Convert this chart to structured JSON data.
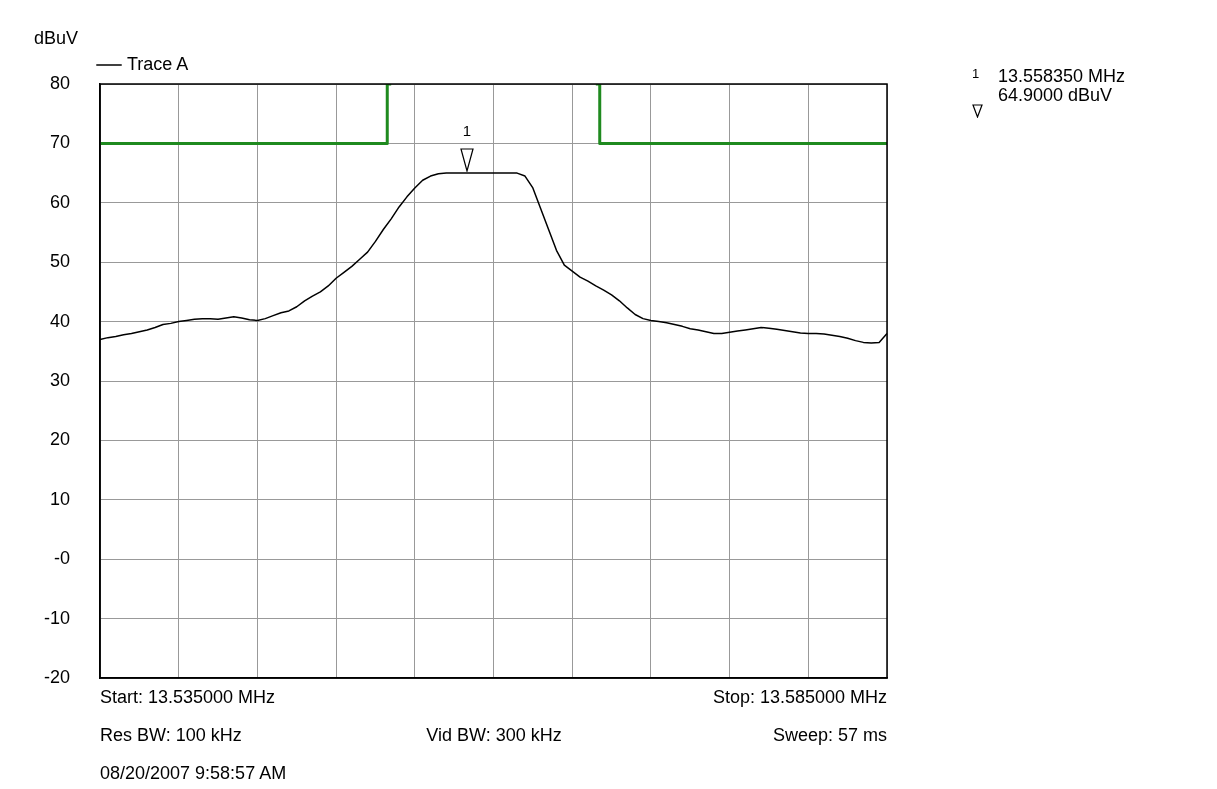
{
  "chart_data": {
    "type": "line",
    "ylabel": "dBuV",
    "categories": [
      null,
      null,
      null,
      null,
      null,
      null,
      null,
      null,
      null,
      null,
      null,
      null,
      null,
      null,
      null,
      null,
      null,
      null,
      null,
      null,
      null,
      null,
      null,
      null,
      null,
      null,
      null,
      null,
      null,
      null,
      null,
      null,
      null,
      null,
      null,
      null,
      null,
      null,
      null,
      null,
      null,
      null,
      null,
      null,
      null,
      null,
      null,
      null,
      null,
      null,
      null,
      null,
      null,
      null,
      null,
      null,
      null,
      null,
      null,
      null,
      null,
      null,
      null,
      null,
      null,
      null,
      null,
      null,
      null,
      null,
      null,
      null,
      null,
      null,
      null,
      null,
      null,
      null,
      null,
      null,
      null,
      null,
      null,
      null,
      null,
      null,
      null,
      null,
      null,
      null,
      null,
      null,
      null,
      null,
      null,
      null,
      null,
      null,
      null,
      null,
      null
    ],
    "ylim": [
      -20,
      80
    ],
    "yticks": [
      -20,
      -10,
      {
        "value": 0,
        "label": "-0"
      },
      10,
      20,
      30,
      40,
      50,
      60,
      70,
      80
    ],
    "grid": true,
    "legend": "top left",
    "marker": "none",
    "series": [
      {
        "name": "Trace A",
        "color": "#000000",
        "values": [
          37,
          37.3,
          37.5,
          37.8,
          38,
          38.3,
          38.6,
          39,
          39.5,
          39.7,
          40,
          40.2,
          40.4,
          40.5,
          40.5,
          40.4,
          40.6,
          40.8,
          40.6,
          40.3,
          40.2,
          40.5,
          41,
          41.5,
          41.8,
          42.5,
          43.5,
          44.3,
          45,
          46,
          47.3,
          48.3,
          49.3,
          50.5,
          51.7,
          53.5,
          55.5,
          57.3,
          59.3,
          61,
          62.5,
          63.8,
          64.5,
          64.9,
          65,
          65,
          65,
          65,
          65,
          65,
          65,
          65,
          65,
          65,
          64.5,
          62.5,
          59,
          55.5,
          52,
          49.5,
          48.5,
          47.5,
          46.8,
          46,
          45.3,
          44.5,
          43.5,
          42.3,
          41.2,
          40.5,
          40.2,
          40,
          39.8,
          39.5,
          39.2,
          38.8,
          38.6,
          38.3,
          38,
          38,
          38.2,
          38.4,
          38.6,
          38.8,
          39,
          38.9,
          38.7,
          38.5,
          38.3,
          38.1,
          38,
          38,
          37.9,
          37.7,
          37.5,
          37.2,
          36.8,
          36.5,
          36.4,
          36.5,
          38
        ]
      },
      {
        "type": "step",
        "color": "#1f8a1f",
        "values": [
          70,
          70,
          70,
          70,
          70,
          70,
          70,
          70,
          70,
          70,
          70,
          70,
          70,
          70,
          70,
          70,
          70,
          70,
          70,
          70,
          70,
          70,
          70,
          70,
          70,
          70,
          70,
          70,
          70,
          70,
          70,
          70,
          70,
          70,
          70,
          70,
          70,
          80,
          null,
          null,
          null,
          null,
          null,
          null,
          null,
          null,
          null,
          null,
          null,
          null,
          null,
          null,
          null,
          null,
          null,
          null,
          null,
          null,
          null,
          null,
          null,
          null,
          null,
          80,
          70,
          70,
          70,
          70,
          70,
          70,
          70,
          70,
          70,
          70,
          70,
          70,
          70,
          70,
          70,
          70,
          70,
          70,
          70,
          70,
          70,
          70,
          70,
          70,
          70,
          70,
          70,
          70,
          70,
          70,
          70,
          70,
          70,
          70,
          70,
          70,
          70
        ]
      }
    ],
    "annotations": [
      "Start: 13.535000 MHz",
      "Stop: 13.585000 MHz",
      "Res BW: 100 kHz",
      "Vid BW: 300 kHz",
      "Sweep: 57 ms",
      "08/20/2007 9:58:57 AM",
      {
        "text": "1",
        "y": 64.9
      },
      "1",
      "13.558350 MHz",
      "64.9000 dBuV"
    ]
  }
}
